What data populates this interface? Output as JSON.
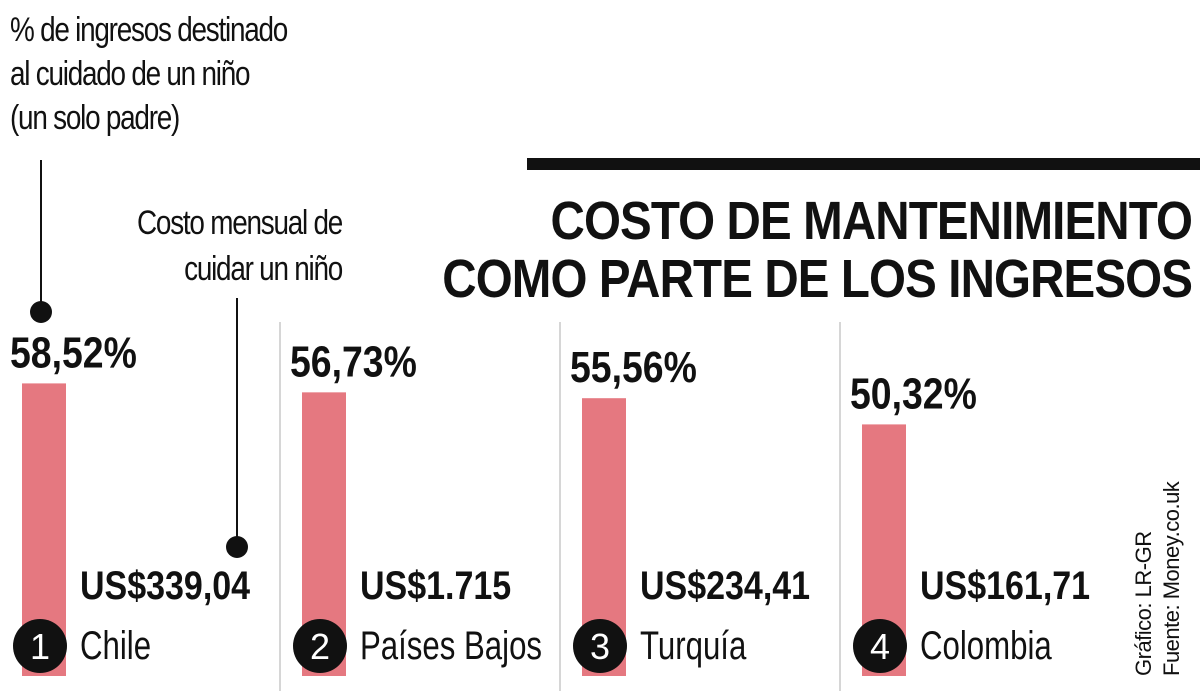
{
  "legend": {
    "pct_lines": [
      "% de ingresos destinado",
      "al cuidado de un niño",
      "(un solo padre)"
    ],
    "cost_lines": [
      "Costo mensual de",
      "cuidar un niño"
    ]
  },
  "title_lines": [
    "COSTO DE MANTENIMIENTO",
    "COMO PARTE DE LOS INGRESOS"
  ],
  "credits": [
    "Gráfico: LR-GR",
    "Fuente: Money.co.uk"
  ],
  "colors": {
    "bar": "#e57880",
    "text": "#111111",
    "divider": "#c8c8c8"
  },
  "chart_data": {
    "type": "bar",
    "categories": [
      "Chile",
      "Países Bajos",
      "Turquía",
      "Colombia"
    ],
    "ranks": [
      "1",
      "2",
      "3",
      "4"
    ],
    "values": [
      58.52,
      56.73,
      55.56,
      50.32
    ],
    "value_labels": [
      "58,52%",
      "56,73%",
      "55,56%",
      "50,32%"
    ],
    "costs": [
      "US$339,04",
      "US$1.715",
      "US$234,41",
      "US$161,71"
    ],
    "unit": "%"
  }
}
